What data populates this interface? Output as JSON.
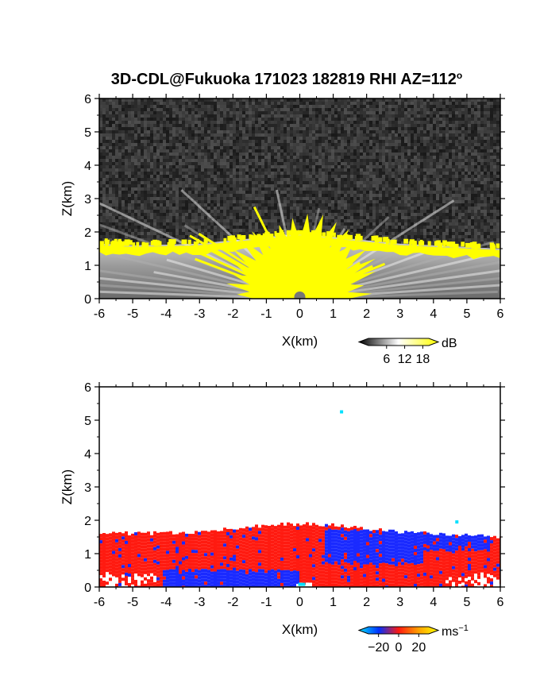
{
  "title": "3D-CDL@Fukuoka 171023 182819 RHI AZ=112",
  "title_superscript": "o",
  "chart_data": [
    {
      "type": "heatmap",
      "quantity": "backscatter",
      "xlabel": "X(km)",
      "ylabel": "Z(km)",
      "xlim": [
        -6,
        6
      ],
      "ylim": [
        0,
        6
      ],
      "x_ticks": [
        "-6",
        "-5",
        "-4",
        "-3",
        "-2",
        "-1",
        "0",
        "1",
        "2",
        "3",
        "4",
        "5",
        "6"
      ],
      "y_ticks": [
        "0",
        "1",
        "2",
        "3",
        "4",
        "5",
        "6"
      ],
      "colorbar": {
        "unit": "dB",
        "ticks": [
          "6",
          "12",
          "18"
        ],
        "tick_values": [
          6,
          12,
          18
        ],
        "range": [
          0,
          20
        ],
        "colors": [
          "#000000",
          "#ffffff",
          "#ffff00"
        ]
      },
      "features": {
        "noise_color": "#333333",
        "layer_top_km": [
          1.65,
          1.6,
          1.62,
          1.65,
          1.75,
          1.85,
          1.95,
          1.85,
          1.75,
          1.65,
          1.6,
          1.55,
          1.5
        ],
        "layer_x_km": [
          -6,
          -5,
          -4,
          -3,
          -2,
          -1,
          0,
          1,
          2,
          3,
          4,
          5,
          6
        ],
        "strong_echo_color": "#ffff00"
      }
    },
    {
      "type": "heatmap",
      "quantity": "radial velocity",
      "xlabel": "X(km)",
      "ylabel": "Z(km)",
      "xlim": [
        -6,
        6
      ],
      "ylim": [
        0,
        6
      ],
      "x_ticks": [
        "-6",
        "-5",
        "-4",
        "-3",
        "-2",
        "-1",
        "0",
        "1",
        "2",
        "3",
        "4",
        "5",
        "6"
      ],
      "y_ticks": [
        "0",
        "1",
        "2",
        "3",
        "4",
        "5",
        "6"
      ],
      "colorbar": {
        "unit": "ms",
        "unit_superscript": "−1",
        "ticks": [
          "−20",
          "0",
          "20"
        ],
        "tick_values": [
          -20,
          0,
          20
        ],
        "range": [
          -30,
          30
        ],
        "colors": [
          "#00e0ff",
          "#0030ff",
          "#ff1a10",
          "#ffa000",
          "#ffff00"
        ]
      },
      "features": {
        "positive_color": "#ff1a10",
        "negative_color": "#1a2aff",
        "layer_top_km": [
          1.65,
          1.6,
          1.62,
          1.65,
          1.75,
          1.85,
          1.9,
          1.85,
          1.75,
          1.65,
          1.6,
          1.55,
          1.5
        ]
      }
    }
  ]
}
